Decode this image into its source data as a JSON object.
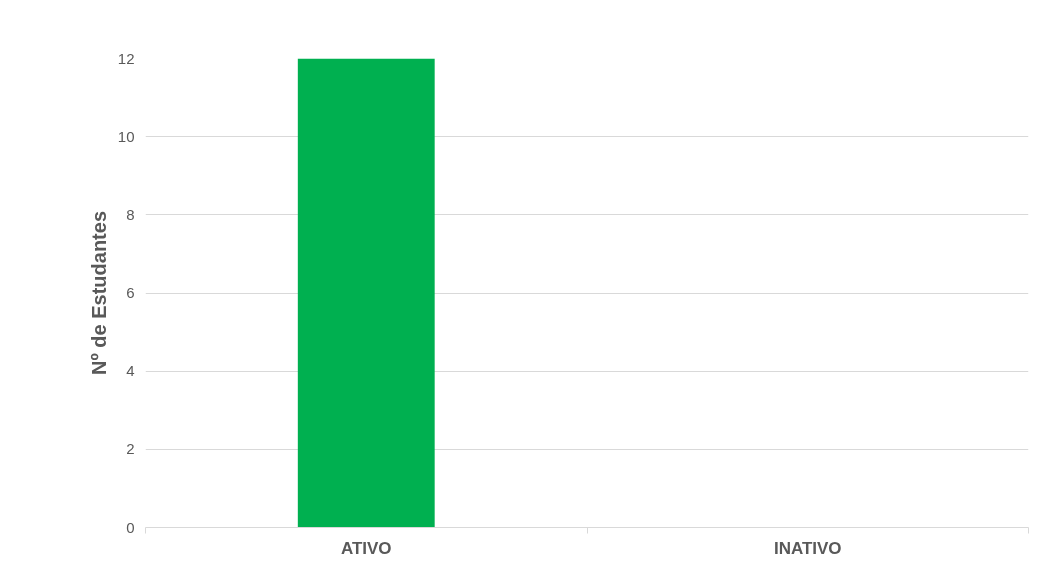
{
  "chart_data": {
    "type": "bar",
    "categories": [
      "ATIVO",
      "INATIVO"
    ],
    "values": [
      12,
      0
    ],
    "color": "#00b050",
    "ylabel": "Nº de Estudantes",
    "ylim": [
      0,
      12
    ],
    "yticks": [
      0,
      2,
      4,
      6,
      8,
      10,
      12
    ],
    "grid": "y"
  }
}
